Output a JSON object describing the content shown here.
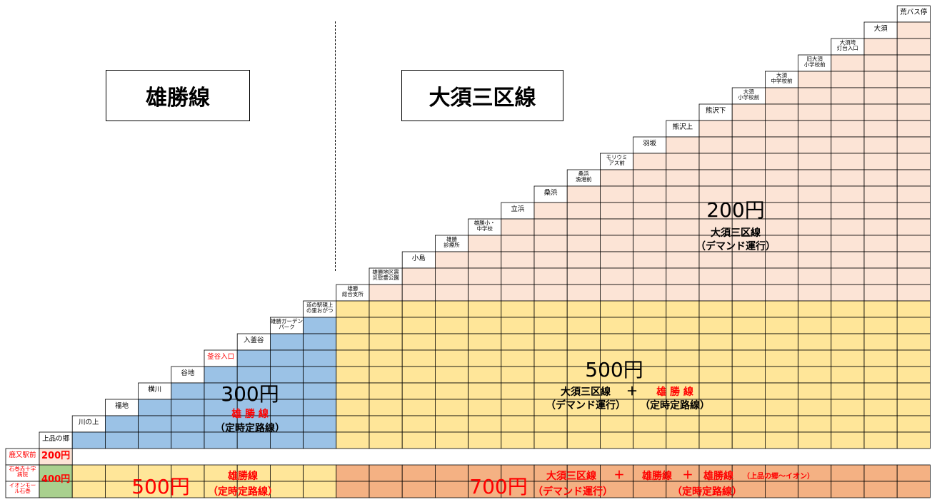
{
  "titles": {
    "left": "雄勝線",
    "right": "大須三区線"
  },
  "stops": [
    {
      "name": "上品の郷",
      "color": "#000000"
    },
    {
      "name": "川の上",
      "color": "#000000"
    },
    {
      "name": "福地",
      "color": "#000000"
    },
    {
      "name": "横川",
      "color": "#000000"
    },
    {
      "name": "谷地",
      "color": "#000000"
    },
    {
      "name": "釜谷入口",
      "color": "#ff0000"
    },
    {
      "name": "入釜谷",
      "color": "#000000"
    },
    {
      "name": "雄勝ガーデン\nパーク",
      "color": "#000000"
    },
    {
      "name": "道の駅硯上\nの里おがつ",
      "color": "#000000"
    },
    {
      "name": "雄勝\n総合支所",
      "color": "#000000"
    },
    {
      "name": "雄勝地区震\n災慰霊公園",
      "color": "#000000"
    },
    {
      "name": "小島",
      "color": "#000000"
    },
    {
      "name": "雄勝\n診療所",
      "color": "#000000"
    },
    {
      "name": "雄勝小・\n中学校",
      "color": "#000000"
    },
    {
      "name": "立浜",
      "color": "#000000"
    },
    {
      "name": "桑浜",
      "color": "#000000"
    },
    {
      "name": "桑浜\n漁港前",
      "color": "#000000"
    },
    {
      "name": "モリウミ\nアス前",
      "color": "#000000"
    },
    {
      "name": "羽坂",
      "color": "#000000"
    },
    {
      "name": "熊沢上",
      "color": "#000000"
    },
    {
      "name": "熊沢下",
      "color": "#000000"
    },
    {
      "name": "大須\n小学校前",
      "color": "#000000"
    },
    {
      "name": "大須\n中学校前",
      "color": "#000000"
    },
    {
      "name": "旧大須\n小学校前",
      "color": "#000000"
    },
    {
      "name": "大須埼\n灯台入口",
      "color": "#000000"
    },
    {
      "name": "大須",
      "color": "#000000"
    },
    {
      "name": "荒バス停",
      "color": "#000000"
    }
  ],
  "bottom_rows": [
    {
      "label": "鹿又駅前",
      "fare": "200円"
    },
    {
      "label": "石巻赤十字\n病院",
      "fare": "400円"
    },
    {
      "label": "イオンモー\nル石巻",
      "fare": ""
    }
  ],
  "zones": {
    "z200": {
      "price": "200円",
      "line1": "大須三区線",
      "line2": "（デマンド運行）"
    },
    "z300": {
      "price": "300円",
      "line1": "雄 勝 線",
      "line2": "（定時定路線）"
    },
    "z500mid": {
      "price": "500円",
      "a1": "大須三区線",
      "plus": "＋",
      "b1": "雄 勝 線",
      "a2": "（デマンド運行）",
      "b2": "（定時定路線）"
    },
    "z500bot": {
      "price": "500円",
      "l1": "雄勝線",
      "l2": "（定時定路線）"
    },
    "z700": {
      "price": "700円",
      "a1": "大須三区線",
      "plus1": "＋",
      "b1": "雄勝線",
      "plus2": "＋",
      "c1": "雄勝線",
      "c1s": "（上品の郷～イオン）",
      "a2": "（デマンド運行）",
      "b2": "（定時定路線）"
    }
  },
  "colors": {
    "pink": "#fce4d6",
    "blue": "#9bc2e6",
    "yellow": "#ffe699",
    "orange": "#f4b183",
    "green": "#a9d08e",
    "red": "#ff0000"
  }
}
